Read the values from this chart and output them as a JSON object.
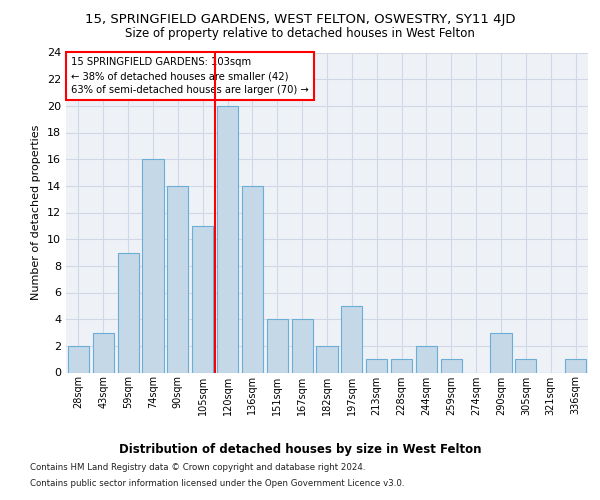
{
  "title": "15, SPRINGFIELD GARDENS, WEST FELTON, OSWESTRY, SY11 4JD",
  "subtitle": "Size of property relative to detached houses in West Felton",
  "xlabel": "Distribution of detached houses by size in West Felton",
  "ylabel": "Number of detached properties",
  "categories": [
    "28sqm",
    "43sqm",
    "59sqm",
    "74sqm",
    "90sqm",
    "105sqm",
    "120sqm",
    "136sqm",
    "151sqm",
    "167sqm",
    "182sqm",
    "197sqm",
    "213sqm",
    "228sqm",
    "244sqm",
    "259sqm",
    "274sqm",
    "290sqm",
    "305sqm",
    "321sqm",
    "336sqm"
  ],
  "values": [
    2,
    3,
    9,
    16,
    14,
    11,
    20,
    14,
    4,
    4,
    2,
    5,
    1,
    1,
    2,
    1,
    0,
    3,
    1,
    0,
    1
  ],
  "bar_color": "#c5d8e8",
  "bar_edge_color": "#6aaed6",
  "grid_color": "#d0d8e8",
  "background_color": "#eef2f7",
  "red_line_x": 5.5,
  "ylim": [
    0,
    24
  ],
  "yticks": [
    0,
    2,
    4,
    6,
    8,
    10,
    12,
    14,
    16,
    18,
    20,
    22,
    24
  ],
  "annotation_title": "15 SPRINGFIELD GARDENS: 103sqm",
  "annotation_line1": "← 38% of detached houses are smaller (42)",
  "annotation_line2": "63% of semi-detached houses are larger (70) →",
  "footer1": "Contains HM Land Registry data © Crown copyright and database right 2024.",
  "footer2": "Contains public sector information licensed under the Open Government Licence v3.0."
}
